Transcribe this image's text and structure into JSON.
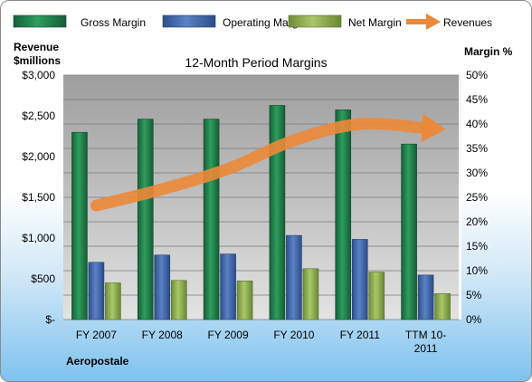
{
  "chart_data": {
    "type": "bar",
    "title": "12-Month Period Margins",
    "company": "Aeropostale",
    "y_left_label": [
      "Revenue",
      "$millions"
    ],
    "y_right_label": "Margin %",
    "y_left_ticks": [
      "$3,000",
      "$2,500",
      "$2,000",
      "$1,500",
      "$1,000",
      "$500",
      "$-"
    ],
    "y_right_ticks": [
      "50%",
      "45%",
      "40%",
      "35%",
      "30%",
      "25%",
      "20%",
      "15%",
      "10%",
      "5%",
      "0%"
    ],
    "y_left_range": [
      0,
      3000
    ],
    "y_right_range": [
      0,
      50
    ],
    "categories": [
      [
        "FY 2007"
      ],
      [
        "FY 2008"
      ],
      [
        "FY 2009"
      ],
      [
        "FY 2010"
      ],
      [
        "FY 2011"
      ],
      [
        "TTM 10-",
        "2011"
      ]
    ],
    "series": [
      {
        "name": "Gross Margin",
        "axis": "right",
        "color": "#1f7a46",
        "values": [
          38.3,
          41.0,
          41.0,
          43.8,
          42.9,
          35.9
        ]
      },
      {
        "name": "Operating Margin",
        "axis": "right",
        "color": "#3e65a8",
        "values": [
          11.7,
          13.2,
          13.4,
          17.2,
          16.4,
          9.1
        ]
      },
      {
        "name": "Net Margin",
        "axis": "right",
        "color": "#8fae4e",
        "values": [
          7.5,
          8.0,
          7.9,
          10.4,
          9.7,
          5.3
        ]
      },
      {
        "name": "Revenues",
        "axis": "left",
        "color": "#ec8837",
        "type": "arrow",
        "values": [
          1400,
          1600,
          1850,
          2200,
          2400,
          2350
        ]
      }
    ],
    "grid": true,
    "legend_position": "top"
  }
}
